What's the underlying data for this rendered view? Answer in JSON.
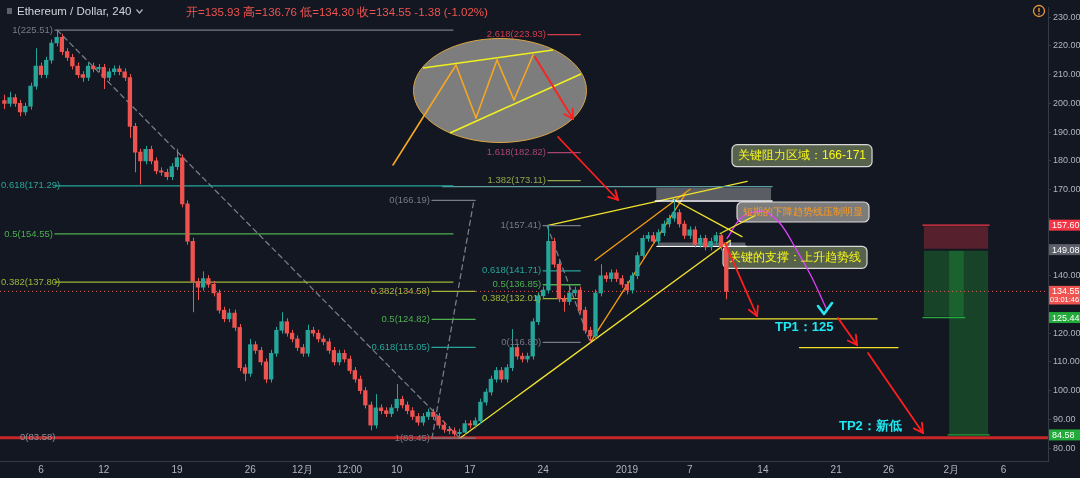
{
  "chart_data": {
    "type": "candlestick",
    "title": "Ethereum / Dollar, 240",
    "subtitle": "开=135.93 高=136.76 低=134.30 收=134.55 -1.38 (-1.02%)",
    "xlim": [
      "2018-11-02T02:00",
      "2019-02-10T06:00"
    ],
    "ylim": [
      75.5,
      233.4
    ],
    "xticks": [
      {
        "value": "2018-11-06",
        "label": "6"
      },
      {
        "value": "2018-11-12",
        "label": "12"
      },
      {
        "value": "2018-11-19",
        "label": "19"
      },
      {
        "value": "2018-11-26",
        "label": "26"
      },
      {
        "value": "2018-12-01",
        "label": "12月"
      },
      {
        "value": "2018-12-05T12:00",
        "label": "12:00"
      },
      {
        "value": "2018-12-10",
        "label": "10"
      },
      {
        "value": "2018-12-17",
        "label": "17"
      },
      {
        "value": "2018-12-24",
        "label": "24"
      },
      {
        "value": "2019-01-01",
        "label": "2019"
      },
      {
        "value": "2019-01-07",
        "label": "7"
      },
      {
        "value": "2019-01-14",
        "label": "14"
      },
      {
        "value": "2019-01-21",
        "label": "21"
      },
      {
        "value": "2019-01-26",
        "label": "26"
      },
      {
        "value": "2019-02-01",
        "label": "2月"
      },
      {
        "value": "2019-02-06",
        "label": "6"
      }
    ],
    "yticks": [
      {
        "value": 80,
        "label": "80.00"
      },
      {
        "value": 90,
        "label": "90.00"
      },
      {
        "value": 100,
        "label": "100.00"
      },
      {
        "value": 110,
        "label": "110.00"
      },
      {
        "value": 120,
        "label": "120.00"
      },
      {
        "value": 140,
        "label": "140.00"
      },
      {
        "value": 160,
        "label": null
      },
      {
        "value": 170,
        "label": "170.00"
      },
      {
        "value": 180,
        "label": "180.00"
      },
      {
        "value": 190,
        "label": "190.00"
      },
      {
        "value": 200,
        "label": "200.00"
      },
      {
        "value": 210,
        "label": "210.00"
      },
      {
        "value": 220,
        "label": "220.00"
      },
      {
        "value": 230,
        "label": "230.00"
      }
    ],
    "x": [
      "2018-11-02T12:00",
      "2018-11-03T00:00",
      "2018-11-03T12:00",
      "2018-11-04T00:00",
      "2018-11-04T12:00",
      "2018-11-05T00:00",
      "2018-11-05T12:00",
      "2018-11-06T00:00",
      "2018-11-06T12:00",
      "2018-11-07T00:00",
      "2018-11-07T12:00",
      "2018-11-08T00:00",
      "2018-11-08T12:00",
      "2018-11-09T00:00",
      "2018-11-09T12:00",
      "2018-11-10T00:00",
      "2018-11-10T12:00",
      "2018-11-11T00:00",
      "2018-11-11T12:00",
      "2018-11-12T00:00",
      "2018-11-12T12:00",
      "2018-11-13T00:00",
      "2018-11-13T12:00",
      "2018-11-14T00:00",
      "2018-11-14T12:00",
      "2018-11-15T00:00",
      "2018-11-15T12:00",
      "2018-11-16T00:00",
      "2018-11-16T12:00",
      "2018-11-17T00:00",
      "2018-11-17T12:00",
      "2018-11-18T00:00",
      "2018-11-18T12:00",
      "2018-11-19T00:00",
      "2018-11-19T12:00",
      "2018-11-20T00:00",
      "2018-11-20T12:00",
      "2018-11-21T00:00",
      "2018-11-21T12:00",
      "2018-11-22T00:00",
      "2018-11-22T12:00",
      "2018-11-23T00:00",
      "2018-11-23T12:00",
      "2018-11-24T00:00",
      "2018-11-24T12:00",
      "2018-11-25T00:00",
      "2018-11-25T12:00",
      "2018-11-26T00:00",
      "2018-11-26T12:00",
      "2018-11-27T00:00",
      "2018-11-27T12:00",
      "2018-11-28T00:00",
      "2018-11-28T12:00",
      "2018-11-29T00:00",
      "2018-11-29T12:00",
      "2018-11-30T00:00",
      "2018-11-30T12:00",
      "2018-12-01T00:00",
      "2018-12-01T12:00",
      "2018-12-02T00:00",
      "2018-12-02T12:00",
      "2018-12-03T00:00",
      "2018-12-03T12:00",
      "2018-12-04T00:00",
      "2018-12-04T12:00",
      "2018-12-05T00:00",
      "2018-12-05T12:00",
      "2018-12-06T00:00",
      "2018-12-06T12:00",
      "2018-12-07T00:00",
      "2018-12-07T12:00",
      "2018-12-08T00:00",
      "2018-12-08T12:00",
      "2018-12-09T00:00",
      "2018-12-09T12:00",
      "2018-12-10T00:00",
      "2018-12-10T12:00",
      "2018-12-11T00:00",
      "2018-12-11T12:00",
      "2018-12-12T00:00",
      "2018-12-12T12:00",
      "2018-12-13T00:00",
      "2018-12-13T12:00",
      "2018-12-14T00:00",
      "2018-12-14T12:00",
      "2018-12-15T00:00",
      "2018-12-15T12:00",
      "2018-12-16T00:00",
      "2018-12-16T12:00",
      "2018-12-17T00:00",
      "2018-12-17T12:00",
      "2018-12-18T00:00",
      "2018-12-18T12:00",
      "2018-12-19T00:00",
      "2018-12-19T12:00",
      "2018-12-20T00:00",
      "2018-12-20T12:00",
      "2018-12-21T00:00",
      "2018-12-21T12:00",
      "2018-12-22T00:00",
      "2018-12-22T12:00",
      "2018-12-23T00:00",
      "2018-12-23T12:00",
      "2018-12-24T00:00",
      "2018-12-24T12:00",
      "2018-12-25T00:00",
      "2018-12-25T12:00",
      "2018-12-26T00:00",
      "2018-12-26T12:00",
      "2018-12-27T00:00",
      "2018-12-27T12:00",
      "2018-12-28T00:00",
      "2018-12-28T12:00",
      "2018-12-29T00:00",
      "2018-12-29T12:00",
      "2018-12-30T00:00",
      "2018-12-30T12:00",
      "2018-12-31T00:00",
      "2018-12-31T12:00",
      "2019-01-01T00:00",
      "2019-01-01T12:00",
      "2019-01-02T00:00",
      "2019-01-02T12:00",
      "2019-01-03T00:00",
      "2019-01-03T12:00",
      "2019-01-04T00:00",
      "2019-01-04T12:00",
      "2019-01-05T00:00",
      "2019-01-05T12:00",
      "2019-01-06T00:00",
      "2019-01-06T12:00",
      "2019-01-07T00:00",
      "2019-01-07T12:00",
      "2019-01-08T00:00",
      "2019-01-08T12:00",
      "2019-01-09T00:00",
      "2019-01-09T12:00",
      "2019-01-10T00:00",
      "2019-01-10T12:00"
    ],
    "ohlc": [
      [
        201,
        203,
        198,
        200
      ],
      [
        200,
        204,
        198.8,
        202
      ],
      [
        202,
        203.2,
        198.8,
        200
      ],
      [
        200,
        201.2,
        195.5,
        197
      ],
      [
        197,
        200.2,
        195.8,
        199
      ],
      [
        199,
        207.2,
        197.8,
        206
      ],
      [
        206,
        219.2,
        204.8,
        213
      ],
      [
        213,
        214.2,
        208.8,
        210
      ],
      [
        210,
        216.2,
        208.8,
        215
      ],
      [
        215,
        222.2,
        213.8,
        221
      ],
      [
        221,
        225.51,
        219.8,
        223
      ],
      [
        223,
        224.2,
        216.8,
        218
      ],
      [
        218,
        219.2,
        214.8,
        216
      ],
      [
        216,
        217.2,
        211.8,
        213
      ],
      [
        213,
        214.2,
        208.8,
        210
      ],
      [
        210,
        211.2,
        207.5,
        209
      ],
      [
        209,
        214.2,
        207.8,
        213
      ],
      [
        213,
        214.2,
        210.8,
        212
      ],
      [
        212,
        213.7,
        210.8,
        212.5
      ],
      [
        212.5,
        213.7,
        205,
        209
      ],
      [
        209,
        212.2,
        207.8,
        211
      ],
      [
        211,
        213.2,
        209.8,
        212
      ],
      [
        212,
        213.2,
        209.8,
        211
      ],
      [
        211,
        212.2,
        207.8,
        209
      ],
      [
        209,
        210.2,
        188,
        192
      ],
      [
        192,
        193.2,
        176,
        183
      ],
      [
        183,
        184.2,
        171.8,
        180
      ],
      [
        180,
        185.2,
        178.8,
        184
      ],
      [
        184,
        185.2,
        178.8,
        180
      ],
      [
        180,
        181.2,
        175.3,
        176.5
      ],
      [
        176.5,
        177.7,
        174.8,
        176
      ],
      [
        176,
        177.2,
        173.3,
        174.5
      ],
      [
        174.5,
        179.2,
        173.3,
        178
      ],
      [
        178,
        184.2,
        176.8,
        181
      ],
      [
        181,
        182.2,
        163.8,
        165
      ],
      [
        165,
        166.2,
        150.8,
        152
      ],
      [
        152,
        153.2,
        127.3,
        138
      ],
      [
        138,
        139.2,
        131.5,
        136
      ],
      [
        136,
        141.5,
        134.8,
        139
      ],
      [
        139,
        140.2,
        135.8,
        137
      ],
      [
        137,
        138.2,
        132.8,
        134
      ],
      [
        134,
        135.2,
        126.8,
        128
      ],
      [
        128,
        129.2,
        123.8,
        125
      ],
      [
        125,
        128.5,
        123.8,
        127
      ],
      [
        127,
        128.2,
        120.8,
        122
      ],
      [
        122,
        123.2,
        106.8,
        108
      ],
      [
        108,
        109.2,
        103.3,
        106
      ],
      [
        106,
        118,
        104.8,
        116
      ],
      [
        116,
        117.2,
        112.8,
        114
      ],
      [
        114,
        115.2,
        108.8,
        110
      ],
      [
        110,
        111.2,
        102.6,
        104
      ],
      [
        104,
        114.2,
        102.8,
        113
      ],
      [
        113,
        122.2,
        111.8,
        121
      ],
      [
        121,
        127.3,
        119.8,
        124
      ],
      [
        124,
        125.2,
        118.8,
        120
      ],
      [
        120,
        121.2,
        116.8,
        118
      ],
      [
        118,
        119.2,
        113.8,
        115
      ],
      [
        115,
        116.2,
        111.8,
        113
      ],
      [
        113,
        123,
        111.8,
        121
      ],
      [
        121,
        122.2,
        118.8,
        120
      ],
      [
        120,
        121.2,
        116.8,
        118
      ],
      [
        118,
        119.2,
        115.8,
        117
      ],
      [
        117,
        118.2,
        112.8,
        114
      ],
      [
        114,
        115.2,
        108.8,
        110
      ],
      [
        110,
        114.2,
        108.8,
        113
      ],
      [
        113,
        114.2,
        109.8,
        111
      ],
      [
        111,
        112.2,
        105.8,
        107
      ],
      [
        107,
        108.2,
        102.8,
        104
      ],
      [
        104,
        105.2,
        98.8,
        100
      ],
      [
        100,
        101.2,
        93.8,
        95
      ],
      [
        95,
        96.2,
        86.2,
        88
      ],
      [
        88,
        98.8,
        86.8,
        94
      ],
      [
        94,
        95.2,
        91.8,
        93
      ],
      [
        93,
        94.2,
        90.8,
        92
      ],
      [
        92,
        95.2,
        90.8,
        94
      ],
      [
        94,
        102.3,
        92.8,
        97
      ],
      [
        97,
        98.2,
        93.8,
        95
      ],
      [
        95,
        96.2,
        91.8,
        93
      ],
      [
        93,
        94.2,
        89.8,
        91
      ],
      [
        91,
        92.2,
        87.8,
        89
      ],
      [
        89,
        92.2,
        87.8,
        91
      ],
      [
        91,
        93.7,
        89.8,
        92.5
      ],
      [
        92.5,
        93.7,
        89.8,
        91
      ],
      [
        91,
        92.2,
        86.8,
        88
      ],
      [
        88,
        89.2,
        85.3,
        86.5
      ],
      [
        86.5,
        87.7,
        84.8,
        86
      ],
      [
        86,
        87.2,
        84,
        85
      ],
      [
        85,
        86.7,
        83.45,
        85.5
      ],
      [
        85.5,
        89.7,
        84.5,
        88.5
      ],
      [
        88.5,
        89.7,
        86.8,
        88
      ],
      [
        88,
        90.7,
        86.8,
        89.5
      ],
      [
        89.5,
        97.2,
        88.3,
        96
      ],
      [
        96,
        100.7,
        94.8,
        99.5
      ],
      [
        99.5,
        105.2,
        98.3,
        104
      ],
      [
        104,
        108.2,
        102.8,
        107
      ],
      [
        107,
        108.2,
        102.8,
        104
      ],
      [
        104,
        109.2,
        102.8,
        108
      ],
      [
        108,
        121.4,
        106.8,
        115
      ],
      [
        115,
        116.2,
        110.8,
        112
      ],
      [
        112,
        113.2,
        109.8,
        111
      ],
      [
        111,
        113.2,
        109.8,
        112
      ],
      [
        112,
        125.2,
        110.8,
        124
      ],
      [
        124,
        134.2,
        122.8,
        133
      ],
      [
        133,
        136.2,
        131.8,
        135
      ],
      [
        135,
        157.41,
        133.8,
        152
      ],
      [
        152,
        153.2,
        142.8,
        144
      ],
      [
        144,
        145.2,
        130.8,
        132
      ],
      [
        132,
        133.2,
        127.5,
        131
      ],
      [
        131,
        137,
        129.8,
        134
      ],
      [
        134,
        136.2,
        132.8,
        135
      ],
      [
        135,
        136.2,
        126.8,
        128
      ],
      [
        128,
        129.2,
        119.8,
        121
      ],
      [
        121,
        122.2,
        116.8,
        119
      ],
      [
        119,
        135.2,
        117.8,
        134
      ],
      [
        134,
        144,
        132.8,
        140
      ],
      [
        140,
        141.2,
        137.8,
        139
      ],
      [
        139,
        142.2,
        137.8,
        141
      ],
      [
        141,
        142.2,
        137.8,
        139
      ],
      [
        139,
        140.2,
        135.8,
        137
      ],
      [
        137,
        138.2,
        133.5,
        135
      ],
      [
        135,
        141.2,
        133.8,
        140
      ],
      [
        140,
        148.2,
        138.8,
        147
      ],
      [
        147,
        154.2,
        145.8,
        153
      ],
      [
        153,
        155.2,
        151.8,
        154
      ],
      [
        154,
        155.2,
        150.8,
        152
      ],
      [
        152,
        156.2,
        150.8,
        155
      ],
      [
        155,
        159.2,
        153.8,
        158
      ],
      [
        158,
        161.2,
        156.8,
        160
      ],
      [
        160,
        166.6,
        158.8,
        162
      ],
      [
        162,
        163.2,
        156.8,
        158
      ],
      [
        158,
        159.2,
        152.8,
        154
      ],
      [
        154,
        157.2,
        152.8,
        156
      ],
      [
        156,
        157.2,
        149.8,
        151
      ],
      [
        151,
        154.2,
        149.8,
        153
      ],
      [
        153,
        154.2,
        148.8,
        150
      ],
      [
        150,
        153.2,
        148.8,
        152
      ],
      [
        152,
        155.2,
        150.8,
        154
      ],
      [
        154,
        155.2,
        148.8,
        150
      ],
      [
        150,
        151.2,
        131.8,
        134.55
      ]
    ],
    "series": [
      {
        "type": "line",
        "name": "1(225.51)",
        "color": "#787b86",
        "x": [
          "2018-11-07T08:00",
          "2018-12-15T09:00"
        ],
        "values": [
          225.51,
          225.51
        ]
      },
      {
        "type": "line",
        "name": "0.618(171.29)",
        "color": "#26a69a",
        "x": [
          "2018-11-07T08:00",
          "2018-12-15T09:00"
        ],
        "values": [
          171.29,
          171.29
        ]
      },
      {
        "type": "line",
        "name": "0.5(154.55)",
        "color": "#4caf50",
        "x": [
          "2018-11-07T08:00",
          "2018-12-15T09:00"
        ],
        "values": [
          154.55,
          154.55
        ]
      },
      {
        "type": "line",
        "name": "0.382(137.80)",
        "color": "#9eb53a",
        "x": [
          "2018-11-07T08:00",
          "2018-12-15T09:00"
        ],
        "values": [
          137.8,
          137.8
        ]
      },
      {
        "type": "line",
        "color": "#787b86",
        "line_style": "dashed",
        "x": [
          "2018-11-07T13:00",
          "2018-12-16T01:00"
        ],
        "values": [
          225.51,
          83.45
        ]
      },
      {
        "type": "line",
        "name": "0(166.19)",
        "color": "#787b86",
        "x": [
          "2018-12-13T09:00",
          "2018-12-17T12:00"
        ],
        "values": [
          166.19,
          166.19
        ]
      },
      {
        "type": "line",
        "name": "0.382(134.58)",
        "color": "#9eb53a",
        "x": [
          "2018-12-13T09:00",
          "2018-12-17T12:00"
        ],
        "values": [
          134.58,
          134.58
        ]
      },
      {
        "type": "line",
        "name": "0.5(124.82)",
        "color": "#4caf50",
        "x": [
          "2018-12-13T09:00",
          "2018-12-17T12:00"
        ],
        "values": [
          124.82,
          124.82
        ]
      },
      {
        "type": "line",
        "name": "0.618(115.05)",
        "color": "#26a69a",
        "x": [
          "2018-12-13T09:00",
          "2018-12-17T12:00"
        ],
        "values": [
          115.05,
          115.05
        ]
      },
      {
        "type": "line",
        "name": "1(83.45)",
        "color": "#787b86",
        "x": [
          "2018-12-13T09:00",
          "2018-12-17T12:00"
        ],
        "values": [
          83.45,
          83.45
        ]
      },
      {
        "type": "line",
        "color": "#787b86",
        "line_style": "dashed",
        "x": [
          "2018-12-13T09:00",
          "2018-12-17T09:00"
        ],
        "values": [
          83.45,
          166.19
        ]
      },
      {
        "type": "line",
        "name": "1(157.41)",
        "color": "#787b86",
        "x": [
          "2018-12-24T00:00",
          "2018-12-27T13:00"
        ],
        "values": [
          157.41,
          157.41
        ]
      },
      {
        "type": "line",
        "name": "0.618(141.71)",
        "color": "#26a69a",
        "x": [
          "2018-12-24T00:00",
          "2018-12-27T13:00"
        ],
        "values": [
          141.71,
          141.71
        ]
      },
      {
        "type": "line",
        "name": "0.5(136.85)",
        "color": "#4caf50",
        "x": [
          "2018-12-24T00:00",
          "2018-12-27T13:00"
        ],
        "values": [
          136.85,
          136.85
        ]
      },
      {
        "type": "line",
        "name": "0.382(132.01)",
        "color": "#9eb53a",
        "x": [
          "2018-12-24T00:00",
          "2018-12-27T13:00"
        ],
        "values": [
          132.01,
          132.01
        ]
      },
      {
        "type": "line",
        "name": "0(116.80)",
        "color": "#787b86",
        "x": [
          "2018-12-24T00:00",
          "2018-12-27T13:00"
        ],
        "values": [
          116.8,
          116.8
        ]
      },
      {
        "type": "line",
        "color": "#787b86",
        "line_style": "dashed",
        "x": [
          "2018-12-24T09:00",
          "2018-12-28T12:00"
        ],
        "values": [
          157.41,
          116.8
        ]
      },
      {
        "type": "line",
        "name": "2.618(223.93)",
        "color": "#d13c4b",
        "x": [
          "2018-12-24T11:00",
          "2018-12-27T13:00"
        ],
        "values": [
          223.93,
          223.93
        ]
      },
      {
        "type": "line",
        "name": "1.618(182.82)",
        "color": "#a7466f",
        "x": [
          "2018-12-24T11:00",
          "2018-12-27T13:00"
        ],
        "values": [
          182.82,
          182.82
        ]
      },
      {
        "type": "line",
        "name": "1.382(173.11)",
        "color": "#8fa84a",
        "x": [
          "2018-12-24T11:00",
          "2018-12-27T13:00"
        ],
        "values": [
          173.11,
          173.11
        ]
      },
      {
        "type": "line",
        "color": "#5f9ea0",
        "x": [
          "2018-12-14T10:00",
          "2019-01-14T21:00"
        ],
        "values": [
          171,
          171
        ]
      },
      {
        "type": "line",
        "color": "#ffffff",
        "x": [
          "2019-01-03T17:00",
          "2019-01-14T21:00"
        ],
        "values": [
          166,
          166
        ],
        "lower": [
          166,
          166
        ],
        "upper": [
          171,
          171
        ]
      },
      {
        "type": "line",
        "color": "#ffffff",
        "x": [
          "2019-01-03T21:00",
          "2019-01-12T10:00"
        ],
        "values": [
          150.2,
          150.2
        ],
        "lower": [
          150.2,
          150.2
        ],
        "upper": [
          151.9,
          151.9
        ]
      },
      {
        "type": "line",
        "color": "#f0e12c",
        "x": [
          "2018-12-16T01:00",
          "2019-01-10T21:00"
        ],
        "values": [
          83.45,
          152.3
        ]
      },
      {
        "type": "line",
        "color": "#f0e12c",
        "x": [
          "2018-12-24T09:00",
          "2019-01-12T12:00"
        ],
        "values": [
          157.41,
          172.8
        ]
      },
      {
        "type": "line",
        "color": "#f0e12c",
        "x": [
          "2019-01-05T10:00",
          "2019-01-12T00:00"
        ],
        "values": [
          166.6,
          153.6
        ]
      },
      {
        "type": "line",
        "color": "#f0e12c",
        "x": [
          "2019-01-09T22:00",
          "2019-01-13T06:00"
        ],
        "values": [
          154.7,
          160.9
        ]
      },
      {
        "type": "line",
        "color": "#f39c12",
        "x": [
          "2018-12-28T12:00",
          "2019-01-06T14:00"
        ],
        "values": [
          116.8,
          168.4
        ]
      },
      {
        "type": "line",
        "color": "#f39c12",
        "x": [
          "2018-12-28T23:00",
          "2019-01-07T01:00"
        ],
        "values": [
          145.4,
          170.1
        ]
      },
      {
        "type": "line",
        "color": "#e040fb",
        "x": [
          "2019-01-10T14:00",
          "2019-01-11T20:00",
          "2019-01-13T18:00",
          "2019-01-15T16:00",
          "2019-01-17T07:00",
          "2019-01-18T17:00",
          "2019-01-20T03:00"
        ],
        "values": [
          153.0,
          159.8,
          162.5,
          158.1,
          148.5,
          139.2,
          128.0
        ]
      },
      {
        "type": "line",
        "color": "#f0e12c",
        "x": [
          "2019-01-09T22:00",
          "2019-01-24T22:00"
        ],
        "values": [
          125,
          125
        ]
      },
      {
        "type": "line",
        "color": "#f0e12c",
        "x": [
          "2019-01-17T12:00",
          "2019-01-26T22:00"
        ],
        "values": [
          115,
          115
        ]
      },
      {
        "type": "line",
        "color": "#f23645",
        "x": [
          "2019-01-29T07:00",
          "2019-02-04T15:00"
        ],
        "values": [
          157.6,
          157.6
        ],
        "lower": [
          149.08,
          149.08
        ],
        "upper": [
          157.6,
          157.6
        ]
      },
      {
        "type": "line",
        "color": "#22ab3a",
        "x": [
          "2019-01-29T07:00",
          "2019-02-02T07:00"
        ],
        "values": [
          125.44,
          125.44
        ],
        "lower": [
          125.44,
          125.44
        ],
        "upper": [
          149.08,
          149.08
        ]
      },
      {
        "type": "line",
        "color": "#22ab3a",
        "x": [
          "2019-01-31T17:00",
          "2019-02-04T15:00"
        ],
        "values": [
          84.58,
          84.58
        ],
        "lower": [
          84.58,
          84.58
        ],
        "upper": [
          149.08,
          149.08
        ]
      }
    ],
    "ref_lines": [
      {
        "axis": "y",
        "value": 83.58,
        "label": "0(83.58)",
        "color": "#c62828"
      },
      {
        "axis": "y",
        "value": 134.55,
        "color": "#ef5350",
        "line_style": "dotted"
      }
    ],
    "annotations": [
      "关键阻力区域：166-171",
      "短期的下降趋势线压制明显",
      {
        "text": "关键的支撑：上升趋势线",
        "x": "2019-01-10T21:00",
        "y": 152.3
      },
      "TP1：125",
      "TP2：新低",
      "03:01:46",
      {
        "text": "157.60",
        "y": 157.6
      },
      {
        "text": "149.08",
        "y": 149.08
      },
      {
        "text": "134.55",
        "y": 134.55
      },
      {
        "text": "125.44",
        "y": 125.44
      },
      {
        "text": "84.58",
        "y": 84.58
      }
    ]
  }
}
